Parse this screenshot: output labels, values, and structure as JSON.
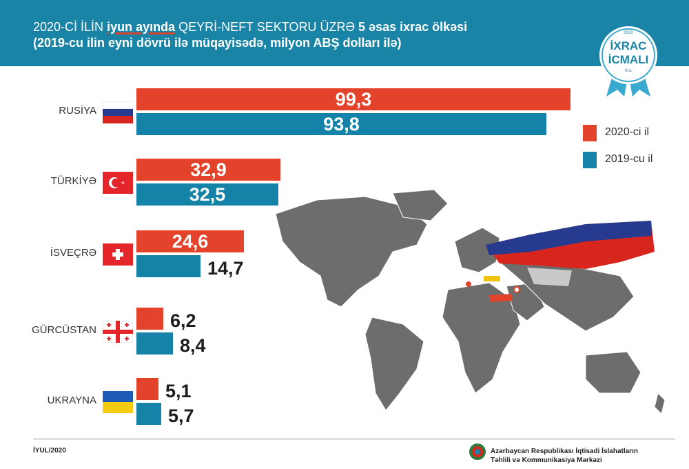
{
  "header": {
    "title_part1": "2020-Cİ İLİN",
    "title_highlight": "iyun ayında",
    "title_part2": "QEYRİ-NEFT SEKTORU ÜZRƏ",
    "title_bold": "5 əsas ixrac ölkəsi",
    "subtitle": "(2019-cu ilin eyni dövrü ilə müqayisədə, milyon ABŞ dolları ilə)"
  },
  "badge": {
    "year": "2020",
    "line1": "İXRAC",
    "line2": "İCMALI",
    "month": "İYUL"
  },
  "chart_data": {
    "type": "bar",
    "orientation": "horizontal",
    "categories": [
      "RUSİYA",
      "TÜRKİYƏ",
      "İSVEÇRƏ",
      "GÜRCÜSTAN",
      "UKRAYNA"
    ],
    "series": [
      {
        "name": "2020-ci il",
        "color": "#e4432b",
        "values": [
          99.3,
          32.9,
          24.6,
          6.2,
          5.1
        ],
        "labels": [
          "99,3",
          "32,9",
          "24,6",
          "6,2",
          "5,1"
        ]
      },
      {
        "name": "2019-cu il",
        "color": "#1583a7",
        "values": [
          93.8,
          32.5,
          14.7,
          8.4,
          5.7
        ],
        "labels": [
          "93,8",
          "32,5",
          "14,7",
          "8,4",
          "5,7"
        ]
      }
    ],
    "legend_position": "right"
  },
  "footer": {
    "date": "İYUL/2020",
    "org_line1": "Azərbaycan Respublikası İqtisadi İslahatların",
    "org_line2": "Təhlili və Kommunikasiya Mərkəzi"
  }
}
